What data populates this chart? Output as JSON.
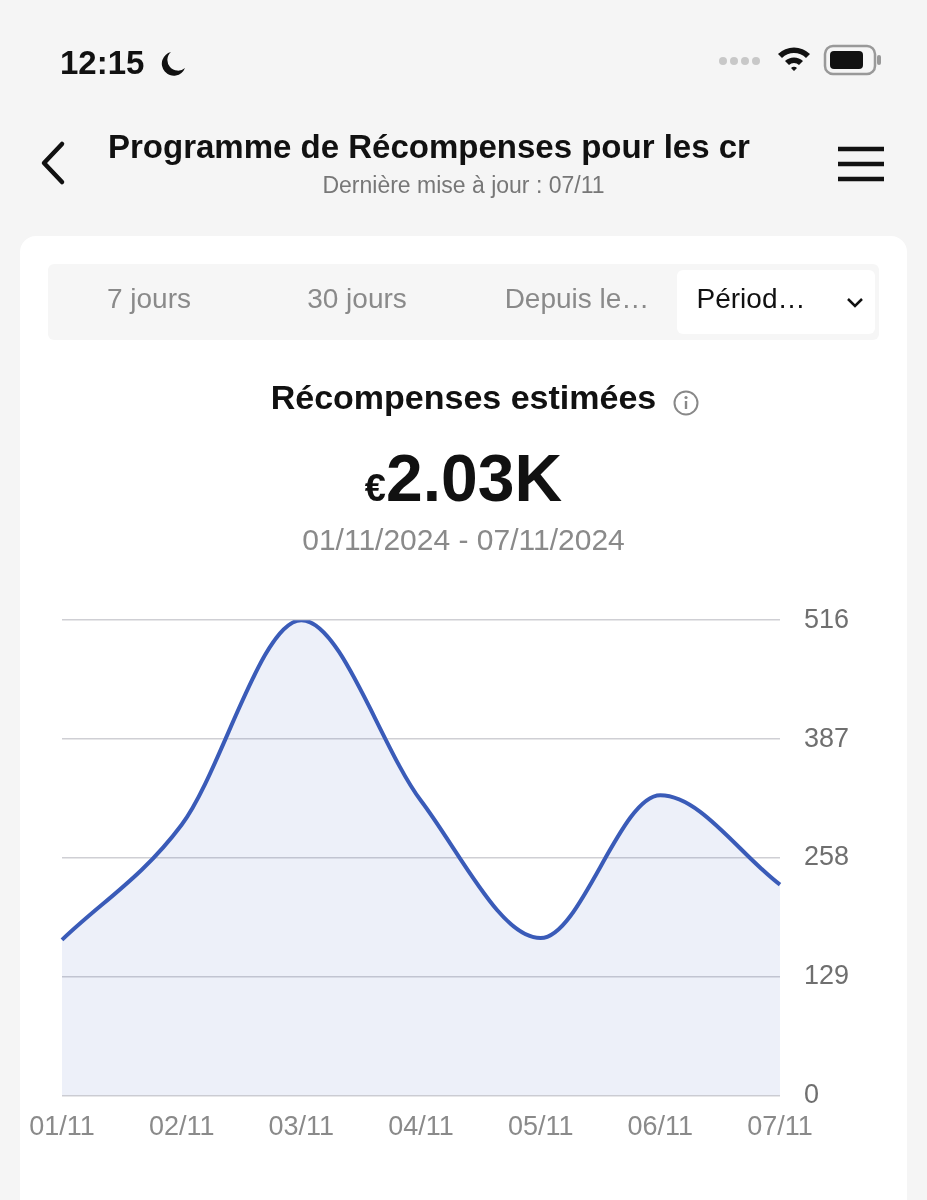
{
  "chart_data": {
    "type": "area",
    "title": "Récompenses estimées",
    "subtitle": "€2.03K",
    "annotations": [
      "01/11/2024 - 07/11/2024",
      "12:15",
      "Programme de Récompenses pour les cr",
      "Dernière mise à jour : 07/11",
      "7 jours",
      "30 jours",
      "Depuis le…",
      "Périod…"
    ],
    "categories": [
      "01/11",
      "02/11",
      "03/11",
      "04/11",
      "05/11",
      "06/11",
      "07/11"
    ],
    "series": [
      {
        "color": "#3a5bb8",
        "values": [
          169,
          294,
          516,
          320,
          171,
          326,
          229
        ]
      }
    ],
    "ylim": [
      0,
      516
    ],
    "yticks": [
      0,
      129,
      258,
      387,
      516
    ],
    "grid": "y",
    "marker": "none"
  }
}
